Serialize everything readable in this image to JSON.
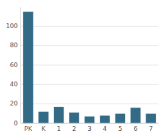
{
  "chart_data": {
    "type": "bar",
    "categories": [
      "PK",
      "K",
      "1",
      "2",
      "3",
      "4",
      "5",
      "6",
      "7"
    ],
    "values": [
      115,
      12,
      17,
      11,
      7,
      8,
      10,
      16,
      10
    ],
    "color": "#336b87",
    "ylim": [
      0,
      120
    ],
    "yticks": [
      0,
      20,
      40,
      60,
      80,
      100
    ],
    "grid": true
  }
}
